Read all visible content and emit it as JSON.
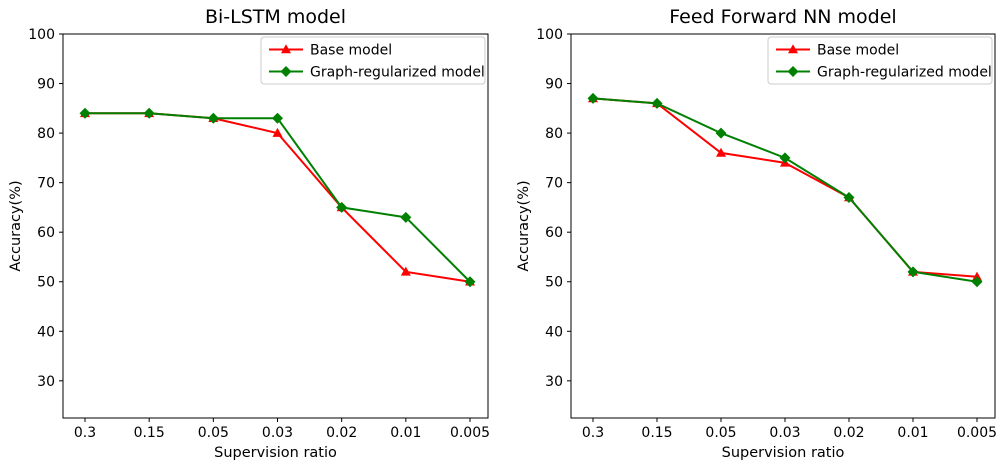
{
  "figure": {
    "background": "#ffffff",
    "text_color": "#000000",
    "spine_color": "#000000",
    "legend_border_color": "#cccccc"
  },
  "chart_data": [
    {
      "type": "line",
      "title": "Bi-LSTM model",
      "xlabel": "Supervision ratio",
      "ylabel": "Accuracy(%)",
      "categories": [
        "0.3",
        "0.15",
        "0.05",
        "0.03",
        "0.02",
        "0.01",
        "0.005"
      ],
      "yticks": [
        30,
        40,
        50,
        60,
        70,
        80,
        90,
        100
      ],
      "ylim": [
        22.5,
        100
      ],
      "grid": false,
      "legend_position": "upper-right",
      "series": [
        {
          "name": "Base model",
          "color": "#ff0000",
          "marker": "triangle-up",
          "values": [
            84,
            84,
            83,
            80,
            65,
            52,
            50
          ]
        },
        {
          "name": "Graph-regularized model",
          "color": "#008000",
          "marker": "diamond",
          "values": [
            84,
            84,
            83,
            83,
            65,
            63,
            50
          ]
        }
      ]
    },
    {
      "type": "line",
      "title": "Feed Forward NN model",
      "xlabel": "Supervision ratio",
      "ylabel": "Accuracy(%)",
      "categories": [
        "0.3",
        "0.15",
        "0.05",
        "0.03",
        "0.02",
        "0.01",
        "0.005"
      ],
      "yticks": [
        30,
        40,
        50,
        60,
        70,
        80,
        90,
        100
      ],
      "ylim": [
        22.5,
        100
      ],
      "grid": false,
      "legend_position": "upper-right",
      "series": [
        {
          "name": "Base model",
          "color": "#ff0000",
          "marker": "triangle-up",
          "values": [
            87,
            86,
            76,
            74,
            67,
            52,
            51
          ]
        },
        {
          "name": "Graph-regularized model",
          "color": "#008000",
          "marker": "diamond",
          "values": [
            87,
            86,
            80,
            75,
            67,
            52,
            50
          ]
        }
      ]
    }
  ]
}
